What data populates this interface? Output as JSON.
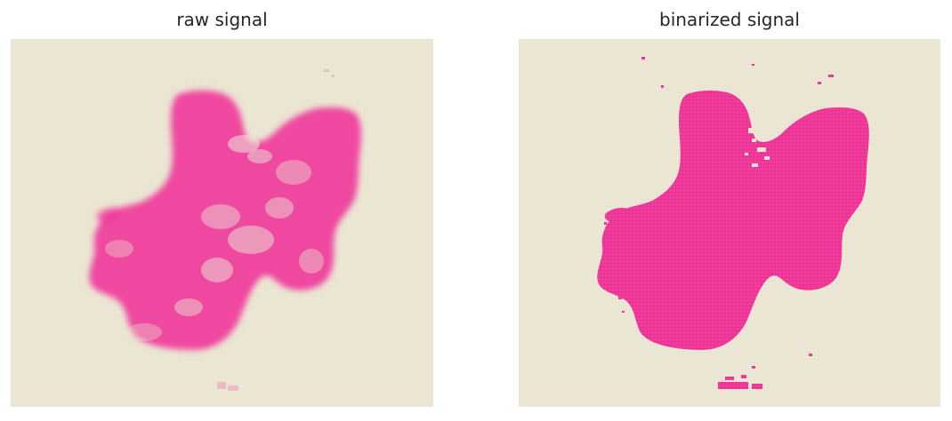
{
  "panels": [
    {
      "title": "raw signal",
      "mode": "raw"
    },
    {
      "title": "binarized signal",
      "mode": "binary"
    }
  ],
  "colors": {
    "background": "#ece8d5",
    "signal": "#f23c9e",
    "grid": "#dfdac4"
  }
}
